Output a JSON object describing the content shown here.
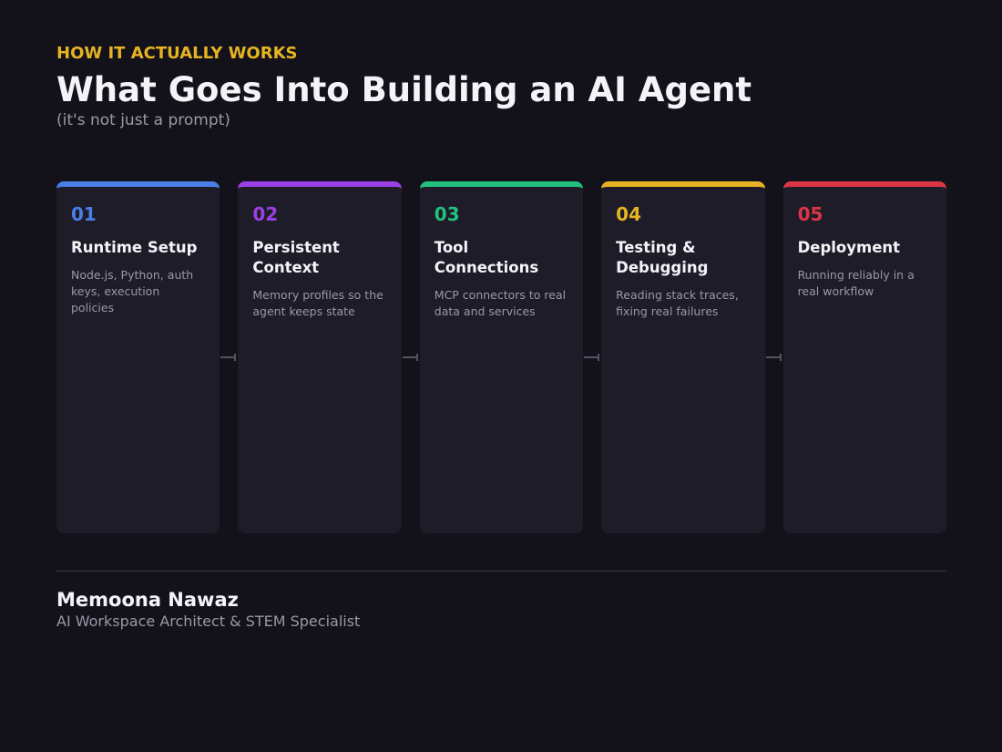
{
  "header": {
    "eyebrow": "HOW IT ACTUALLY WORKS",
    "title": "What Goes Into Building an AI Agent",
    "subtitle": "(it's not just a prompt)"
  },
  "steps": [
    {
      "number": "01",
      "title": "Runtime Setup",
      "description": "Node.js, Python, auth keys, execution policies",
      "color": "#4a7fe8"
    },
    {
      "number": "02",
      "title": "Persistent Context",
      "description": "Memory profiles so the agent keeps state",
      "color": "#9b3fe6"
    },
    {
      "number": "03",
      "title": "Tool Connections",
      "description": "MCP connectors to real data and services",
      "color": "#22c07e"
    },
    {
      "number": "04",
      "title": "Testing & Debugging",
      "description": "Reading stack traces, fixing real failures",
      "color": "#e6b422"
    },
    {
      "number": "05",
      "title": "Deployment",
      "description": "Running reliably in a real workflow",
      "color": "#dc3545"
    }
  ],
  "footer": {
    "name": "Memoona Nawaz",
    "role": "AI Workspace Architect & STEM Specialist"
  }
}
